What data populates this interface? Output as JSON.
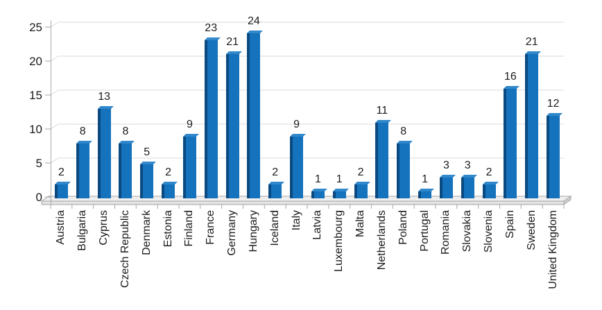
{
  "chart_data": {
    "type": "bar",
    "style": "excel-3d-clustered-column",
    "title": "",
    "xlabel": "",
    "ylabel": "",
    "legend": false,
    "grid": true,
    "data_labels": true,
    "ylim": [
      0,
      25
    ],
    "yticks": [
      0,
      5,
      10,
      15,
      20,
      25
    ],
    "categories": [
      "Austria",
      "Bulgaria",
      "Cyprus",
      "Czech Republic",
      "Denmark",
      "Estonia",
      "Finland",
      "France",
      "Germany",
      "Hungary",
      "Iceland",
      "Italy",
      "Latvia",
      "Luxembourg",
      "Malta",
      "Netherlands",
      "Poland",
      "Portugal",
      "Romania",
      "Slovakia",
      "Slovenia",
      "Spain",
      "Sweden",
      "United Kingdom"
    ],
    "values": [
      2,
      8,
      13,
      8,
      5,
      2,
      9,
      23,
      21,
      24,
      2,
      9,
      1,
      1,
      2,
      11,
      8,
      1,
      3,
      3,
      2,
      16,
      21,
      12
    ],
    "colors": {
      "bar_front": "#1572BC",
      "bar_side": "#0B4A80",
      "bar_top": "#3188CB",
      "gridline": "#D9D9D9",
      "axis": "#A6A6A6",
      "floor_top": "#EFEFEF",
      "floor_front": "#E3E3E3",
      "floor_side": "#CFCFCF",
      "text": "#1A1A1A"
    }
  }
}
